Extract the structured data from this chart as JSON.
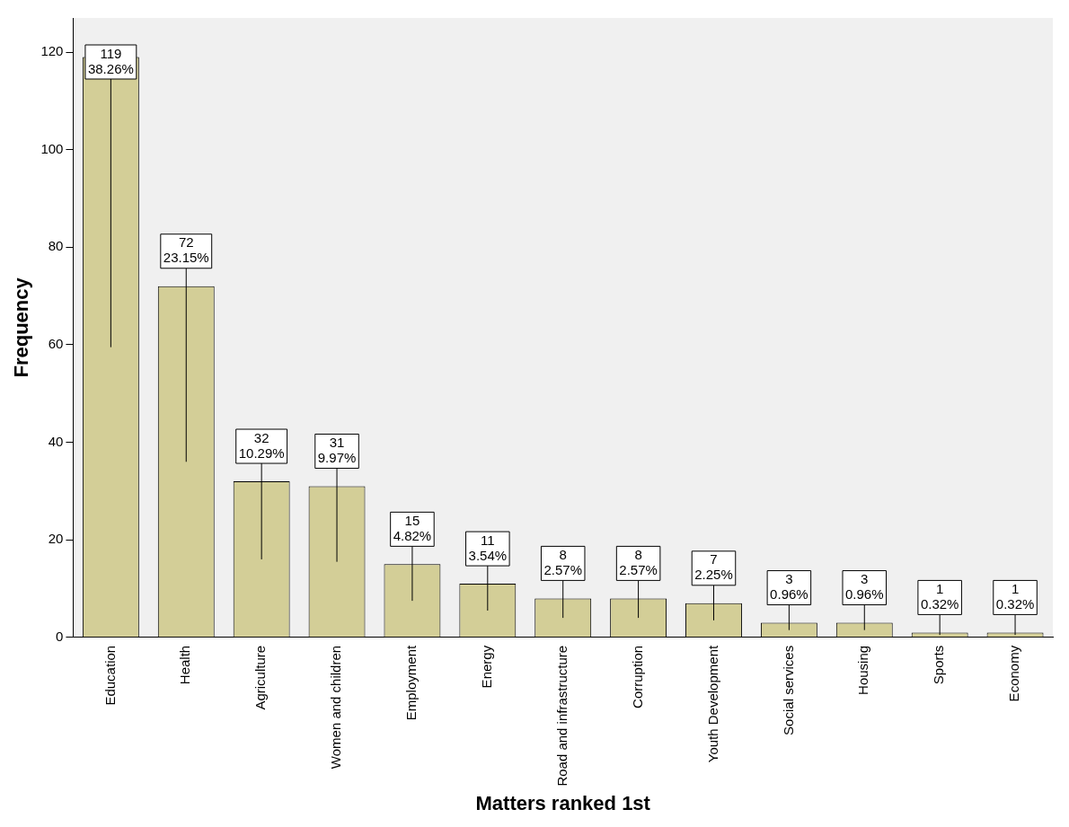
{
  "chart_data": {
    "type": "bar",
    "xlabel": "Matters ranked 1st",
    "ylabel": "Frequency",
    "categories": [
      "Education",
      "Health",
      "Agriculture",
      "Women and children",
      "Employment",
      "Energy",
      "Road and infrastructure",
      "Corruption",
      "Youth Development",
      "Social services",
      "Housing",
      "Sports",
      "Economy"
    ],
    "values": [
      119,
      72,
      32,
      31,
      15,
      11,
      8,
      8,
      7,
      3,
      3,
      1,
      1
    ],
    "value_labels": [
      "119\n38.26%",
      "72\n23.15%",
      "32\n10.29%",
      "31\n9.97%",
      "15\n4.82%",
      "11\n3.54%",
      "8\n2.57%",
      "8\n2.57%",
      "7\n2.25%",
      "3\n0.96%",
      "3\n0.96%",
      "1\n0.32%",
      "1\n0.32%"
    ],
    "color": "#d3ce97",
    "ylim": [
      0,
      127
    ],
    "yticks": [
      0,
      20,
      40,
      60,
      80,
      100,
      120
    ],
    "grid": false,
    "legend": false
  }
}
